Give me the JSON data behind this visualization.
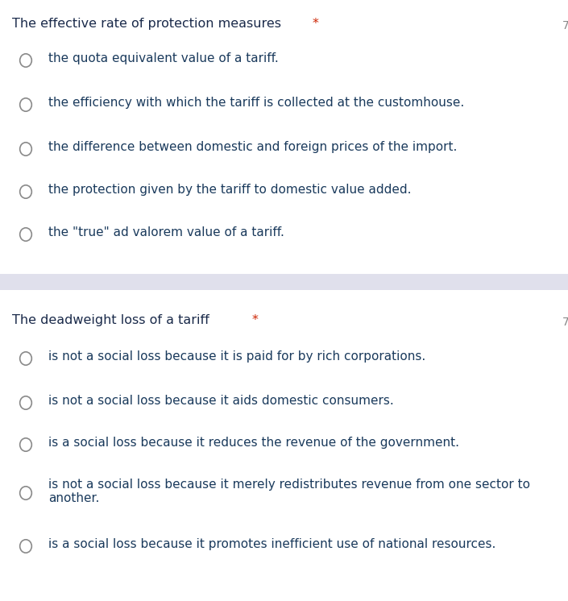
{
  "bg_color": "#ffffff",
  "separator_color": "#e0e0ec",
  "q1_title": "The effective rate of protection measures",
  "q2_title": "The deadweight loss of a tariff",
  "star_color": "#cc2200",
  "title_color": "#1a2a4a",
  "title_fontsize": 11.5,
  "option_fontsize": 11.0,
  "option_color": "#1a3a5c",
  "number_color": "#888888",
  "number_fontsize": 10,
  "circle_color": "#8a8a8a",
  "q1_options": [
    "the quota equivalent value of a tariff.",
    "the efficiency with which the tariff is collected at the customhouse.",
    "the difference between domestic and foreign prices of the import.",
    "the protection given by the tariff to domestic value added.",
    "the \"true\" ad valorem value of a tariff."
  ],
  "q2_options": [
    "is not a social loss because it is paid for by rich corporations.",
    "is not a social loss because it aids domestic consumers.",
    "is a social loss because it reduces the revenue of the government.",
    "is not a social loss because it merely redistributes revenue from one sector to\nanother.",
    "is a social loss because it promotes inefficient use of national resources."
  ],
  "q1_number": "7",
  "q2_number": "7",
  "fig_width": 7.05,
  "fig_height": 7.46,
  "dpi": 100
}
